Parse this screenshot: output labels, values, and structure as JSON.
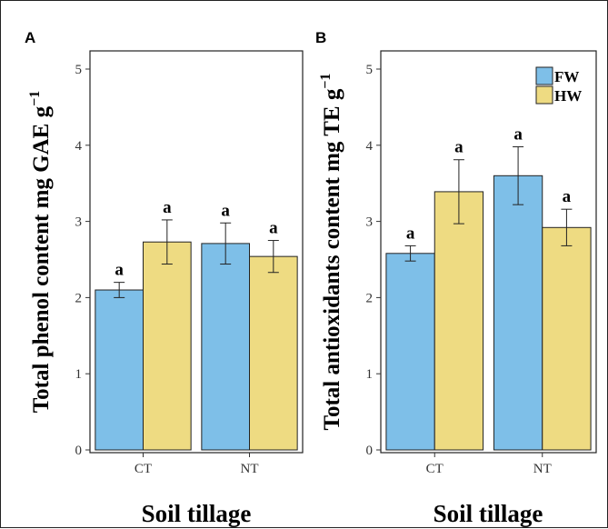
{
  "colors": {
    "FW": "#7ebfe8",
    "HW": "#eedb82",
    "outline": "#222222"
  },
  "legend": {
    "placement": "top-right",
    "entries": [
      "FW",
      "HW"
    ]
  },
  "chart_data": [
    {
      "panel": "A",
      "type": "bar",
      "title": "",
      "ylabel_main": "Total phenol content mg GAE g",
      "ylabel_sup": "−1",
      "xlabel": "Soil tillage",
      "categories": [
        "CT",
        "NT"
      ],
      "ylim": [
        0,
        5
      ],
      "yticks": [
        "0",
        "1",
        "2",
        "3",
        "4",
        "5"
      ],
      "grid": false,
      "series": [
        {
          "name": "FW",
          "values": [
            2.1,
            2.71
          ],
          "errors": [
            0.1,
            0.27
          ],
          "letters": [
            "a",
            "a"
          ]
        },
        {
          "name": "HW",
          "values": [
            2.73,
            2.54
          ],
          "errors": [
            0.29,
            0.21
          ],
          "letters": [
            "a",
            "a"
          ]
        }
      ]
    },
    {
      "panel": "B",
      "type": "bar",
      "title": "",
      "ylabel_main": "Total antioxidants content mg TE g",
      "ylabel_sup": "−1",
      "xlabel": "Soil tillage",
      "categories": [
        "CT",
        "NT"
      ],
      "ylim": [
        0,
        5
      ],
      "yticks": [
        "0",
        "1",
        "2",
        "3",
        "4",
        "5"
      ],
      "grid": false,
      "series": [
        {
          "name": "FW",
          "values": [
            2.58,
            3.6
          ],
          "errors": [
            0.1,
            0.38
          ],
          "letters": [
            "a",
            "a"
          ]
        },
        {
          "name": "HW",
          "values": [
            3.39,
            2.92
          ],
          "errors": [
            0.42,
            0.24
          ],
          "letters": [
            "a",
            "a"
          ]
        }
      ]
    }
  ]
}
